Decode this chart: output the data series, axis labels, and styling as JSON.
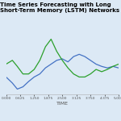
{
  "title": "Time Series Forecasting with Long Short-Term Memory (LSTM) Networks",
  "xlabel": "TIME",
  "background_color": "#dce9f5",
  "line1_color": "#4472c4",
  "line2_color": "#2ca02c",
  "line1_x": [
    0.0,
    0.28,
    0.5,
    0.75,
    1.0,
    1.25,
    1.5,
    1.75,
    2.0,
    2.25,
    2.5,
    2.75,
    3.0,
    3.25,
    3.5,
    3.75,
    4.0,
    4.25,
    4.5,
    4.75,
    5.0
  ],
  "line1_y": [
    0.38,
    0.3,
    0.22,
    0.25,
    0.32,
    0.38,
    0.42,
    0.5,
    0.55,
    0.6,
    0.62,
    0.58,
    0.65,
    0.68,
    0.65,
    0.6,
    0.55,
    0.52,
    0.5,
    0.52,
    0.5
  ],
  "line2_x": [
    0.0,
    0.28,
    0.5,
    0.75,
    1.0,
    1.25,
    1.5,
    1.75,
    2.0,
    2.25,
    2.5,
    2.75,
    3.0,
    3.25,
    3.5,
    3.75,
    4.0,
    4.25,
    4.5,
    4.75,
    5.0
  ],
  "line2_y": [
    0.55,
    0.6,
    0.52,
    0.42,
    0.42,
    0.48,
    0.6,
    0.78,
    0.88,
    0.72,
    0.6,
    0.5,
    0.42,
    0.38,
    0.38,
    0.42,
    0.48,
    0.45,
    0.48,
    0.52,
    0.55
  ],
  "x_ticks": [
    0.0,
    0.625,
    1.25,
    1.875,
    2.5,
    3.125,
    3.75,
    4.375,
    5.0
  ],
  "title_fontsize": 5.0,
  "label_fontsize": 4.5,
  "tick_fontsize": 3.2
}
